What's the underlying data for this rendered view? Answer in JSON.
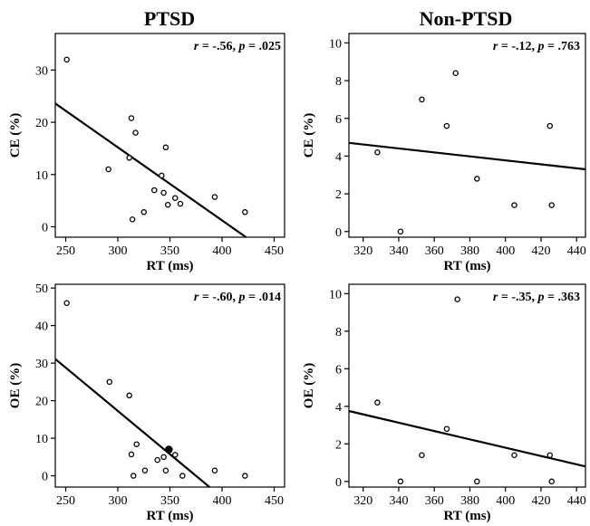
{
  "column_titles": [
    "PTSD",
    "Non-PTSD"
  ],
  "chart_data": [
    {
      "type": "scatter",
      "group": "PTSD",
      "stat": {
        "r_label": "r",
        "r_value": " = -.56, ",
        "p_label": "p",
        "p_value": " = .025"
      },
      "xlabel": "RT (ms)",
      "ylabel": "CE (%)",
      "xlim": [
        240,
        460
      ],
      "ylim": [
        -2,
        37
      ],
      "xticks": [
        250,
        300,
        350,
        400,
        450
      ],
      "yticks": [
        0,
        10,
        20,
        30
      ],
      "points": [
        {
          "x": 251,
          "y": 32.0
        },
        {
          "x": 291,
          "y": 11.0
        },
        {
          "x": 311,
          "y": 13.2
        },
        {
          "x": 313,
          "y": 20.8
        },
        {
          "x": 314,
          "y": 1.4
        },
        {
          "x": 317,
          "y": 18.0
        },
        {
          "x": 325,
          "y": 2.8
        },
        {
          "x": 335,
          "y": 7.0
        },
        {
          "x": 342,
          "y": 9.8
        },
        {
          "x": 344,
          "y": 6.5
        },
        {
          "x": 346,
          "y": 15.2
        },
        {
          "x": 348,
          "y": 4.2
        },
        {
          "x": 355,
          "y": 5.5
        },
        {
          "x": 360,
          "y": 4.4
        },
        {
          "x": 393,
          "y": 5.7
        },
        {
          "x": 422,
          "y": 2.8
        }
      ],
      "fit": {
        "x": [
          240,
          423
        ],
        "y": [
          23.6,
          -2
        ]
      }
    },
    {
      "type": "scatter",
      "group": "Non-PTSD",
      "stat": {
        "r_label": "r",
        "r_value": " = -.12, ",
        "p_label": "p",
        "p_value": " = .763"
      },
      "xlabel": "RT (ms)",
      "ylabel": "CE (%)",
      "xlim": [
        312,
        445
      ],
      "ylim": [
        -0.3,
        10.5
      ],
      "xticks": [
        320,
        340,
        360,
        380,
        400,
        420,
        440
      ],
      "yticks": [
        0,
        2,
        4,
        6,
        8,
        10
      ],
      "points": [
        {
          "x": 328,
          "y": 4.2
        },
        {
          "x": 341,
          "y": 0.0
        },
        {
          "x": 353,
          "y": 7.0
        },
        {
          "x": 367,
          "y": 5.6
        },
        {
          "x": 372,
          "y": 8.4
        },
        {
          "x": 384,
          "y": 2.8
        },
        {
          "x": 405,
          "y": 1.4
        },
        {
          "x": 425,
          "y": 5.6
        },
        {
          "x": 426,
          "y": 1.4
        }
      ],
      "fit": {
        "x": [
          312,
          445
        ],
        "y": [
          4.7,
          3.3
        ]
      }
    },
    {
      "type": "scatter",
      "group": "PTSD",
      "stat": {
        "r_label": "r",
        "r_value": " = -.60, ",
        "p_label": "p",
        "p_value": " = .014"
      },
      "xlabel": "RT (ms)",
      "ylabel": "OE (%)",
      "xlim": [
        240,
        460
      ],
      "ylim": [
        -3,
        51
      ],
      "xticks": [
        250,
        300,
        350,
        400,
        450
      ],
      "yticks": [
        0,
        10,
        20,
        30,
        40,
        50
      ],
      "points": [
        {
          "x": 251,
          "y": 46.0
        },
        {
          "x": 292,
          "y": 25.0
        },
        {
          "x": 311,
          "y": 21.4
        },
        {
          "x": 313,
          "y": 5.7
        },
        {
          "x": 315,
          "y": 0.0
        },
        {
          "x": 318,
          "y": 8.4
        },
        {
          "x": 326,
          "y": 1.4
        },
        {
          "x": 338,
          "y": 4.2
        },
        {
          "x": 344,
          "y": 5.0
        },
        {
          "x": 346,
          "y": 1.4
        },
        {
          "x": 349,
          "y": 7.0,
          "filled": true
        },
        {
          "x": 355,
          "y": 5.6
        },
        {
          "x": 362,
          "y": 0.0
        },
        {
          "x": 393,
          "y": 1.4
        },
        {
          "x": 422,
          "y": 0.0
        }
      ],
      "fit": {
        "x": [
          240,
          388
        ],
        "y": [
          31.1,
          -3
        ]
      }
    },
    {
      "type": "scatter",
      "group": "Non-PTSD",
      "stat": {
        "r_label": "r",
        "r_value": " = -.35, ",
        "p_label": "p",
        "p_value": " = .363"
      },
      "xlabel": "RT (ms)",
      "ylabel": "OE (%)",
      "xlim": [
        312,
        445
      ],
      "ylim": [
        -0.3,
        10.5
      ],
      "xticks": [
        320,
        340,
        360,
        380,
        400,
        420,
        440
      ],
      "yticks": [
        0,
        2,
        4,
        6,
        8,
        10
      ],
      "points": [
        {
          "x": 328,
          "y": 4.2
        },
        {
          "x": 341,
          "y": 0.0
        },
        {
          "x": 353,
          "y": 1.4
        },
        {
          "x": 367,
          "y": 2.8
        },
        {
          "x": 373,
          "y": 9.7
        },
        {
          "x": 384,
          "y": 0.0
        },
        {
          "x": 405,
          "y": 1.4
        },
        {
          "x": 425,
          "y": 1.4
        },
        {
          "x": 426,
          "y": 0.0
        }
      ],
      "fit": {
        "x": [
          312,
          445
        ],
        "y": [
          3.75,
          0.8
        ]
      }
    }
  ]
}
